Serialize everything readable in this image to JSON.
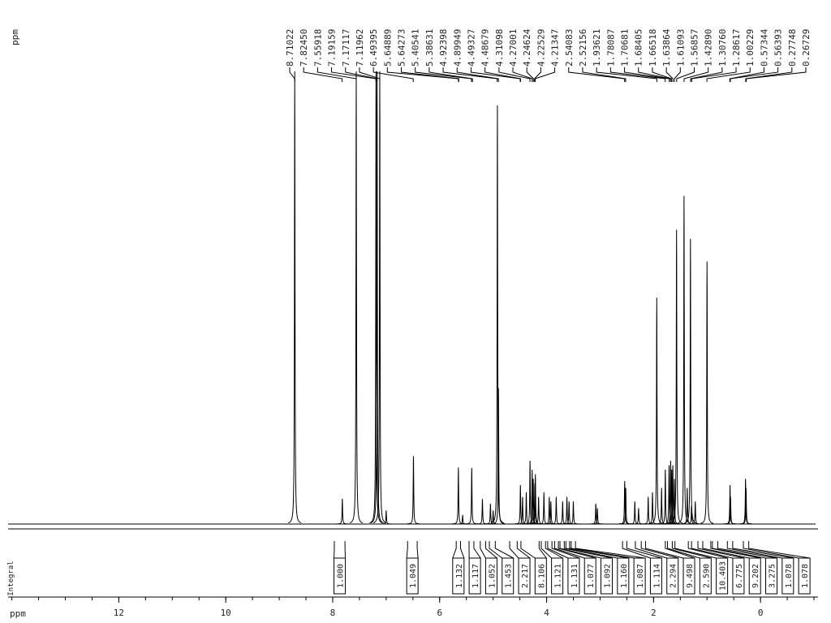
{
  "chart_data": {
    "type": "nmr",
    "y_label": "ppm",
    "x_label": "ppm",
    "integral_label": "Integral",
    "xlim": [
      14.07,
      -1.03
    ],
    "xticks": [
      12,
      10,
      8,
      6,
      4,
      2,
      0
    ],
    "xminor": 0.5,
    "color": "#000000",
    "peak_ppm": [
      8.71022,
      7.8245,
      7.55918,
      7.19159,
      7.17117,
      7.11962,
      6.49395,
      5.64889,
      5.64273,
      5.40541,
      5.38631,
      4.92398,
      4.89949,
      4.49327,
      4.48679,
      4.31098,
      4.27001,
      4.24624,
      4.22529,
      4.21347,
      2.54083,
      2.52156,
      1.93621,
      1.78087,
      1.70681,
      1.68405,
      1.66518,
      1.63864,
      1.61093,
      1.56857,
      1.4289,
      1.3076,
      1.28617,
      1.00229,
      0.57344,
      0.56393,
      0.27748,
      0.26729
    ],
    "peak_labels": [
      "8.71022",
      "7.82450",
      "7.55918",
      "7.19159",
      "7.17117",
      "7.11962",
      "6.49395",
      "5.64889",
      "5.64273",
      "5.40541",
      "5.38631",
      "4.92398",
      "4.89949",
      "4.49327",
      "4.48679",
      "4.31098",
      "4.27001",
      "4.24624",
      "4.22529",
      "4.21347",
      "2.54083",
      "2.52156",
      "1.93621",
      "1.78087",
      "1.70681",
      "1.68405",
      "1.66518",
      "1.63864",
      "1.61093",
      "1.56857",
      "1.42890",
      "1.30760",
      "1.28617",
      "1.00229",
      "0.57344",
      "0.56393",
      "0.27748",
      "0.26729"
    ],
    "trace": {
      "ppm": [
        8.71,
        7.82,
        7.56,
        7.19,
        7.17,
        7.12,
        7.0,
        6.49,
        5.65,
        5.57,
        5.4,
        5.2,
        5.05,
        5.0,
        4.92,
        4.9,
        4.49,
        4.45,
        4.38,
        4.31,
        4.27,
        4.25,
        4.22,
        4.21,
        4.15,
        4.05,
        3.95,
        3.92,
        3.82,
        3.7,
        3.62,
        3.58,
        3.5,
        3.08,
        3.05,
        2.54,
        2.52,
        2.35,
        2.28,
        2.1,
        2.02,
        1.94,
        1.85,
        1.78,
        1.71,
        1.68,
        1.66,
        1.64,
        1.61,
        1.57,
        1.43,
        1.37,
        1.31,
        1.29,
        1.22,
        1.0,
        0.57,
        0.56,
        0.28,
        0.27
      ],
      "height": [
        100,
        5.6,
        100,
        100,
        100,
        100,
        3,
        15,
        12.5,
        2,
        12.4,
        5.5,
        4.5,
        3,
        92.5,
        30,
        8.6,
        6,
        7,
        14,
        12,
        10,
        9,
        11,
        6,
        7,
        6,
        5,
        6,
        5,
        6,
        5,
        5,
        4.5,
        3.5,
        9.5,
        8,
        5,
        3.5,
        6,
        7,
        50,
        8,
        12,
        13,
        14,
        12,
        13,
        10,
        65,
        72.5,
        8,
        63,
        4,
        5,
        58,
        8.6,
        6,
        10,
        8
      ]
    },
    "integrals": {
      "values": [
        1,
        1.049,
        1.132,
        1.117,
        1.052,
        1.453,
        2.217,
        8.106,
        1.121,
        1.131,
        1.077,
        1.092,
        1.16,
        1.087,
        1.114,
        2.294,
        9.498,
        2.59,
        10.403,
        6.775,
        9.202,
        3.275,
        1.078,
        1.078
      ],
      "value_labels": [
        "1.000",
        "1.049",
        "1.132",
        "1.117",
        "1.052",
        "1.453",
        "2.217",
        "8.106",
        "1.121",
        "1.131",
        "1.077",
        "1.092",
        "1.160",
        "1.087",
        "1.114",
        "2.294",
        "9.498",
        "2.590",
        "10.403",
        "6.775",
        "9.202",
        "3.275",
        "1.078",
        "1.078"
      ],
      "ranges": [
        [
          7.97,
          7.77
        ],
        [
          6.6,
          6.42
        ],
        [
          5.69,
          5.61
        ],
        [
          5.45,
          5.36
        ],
        [
          5.24,
          5.14
        ],
        [
          5.07,
          4.96
        ],
        [
          4.69,
          4.55
        ],
        [
          4.48,
          4.14
        ],
        [
          4.1,
          4.02
        ],
        [
          3.98,
          3.9
        ],
        [
          3.85,
          3.78
        ],
        [
          3.75,
          3.67
        ],
        [
          3.64,
          3.57
        ],
        [
          3.54,
          3.46
        ],
        [
          2.58,
          2.5
        ],
        [
          2.34,
          2.23
        ],
        [
          2.15,
          1.78
        ],
        [
          1.74,
          1.65
        ],
        [
          1.6,
          1.35
        ],
        [
          1.29,
          1.17
        ],
        [
          1.08,
          0.93
        ],
        [
          0.9,
          0.8
        ],
        [
          0.62,
          0.52
        ],
        [
          0.32,
          0.22
        ]
      ]
    }
  }
}
